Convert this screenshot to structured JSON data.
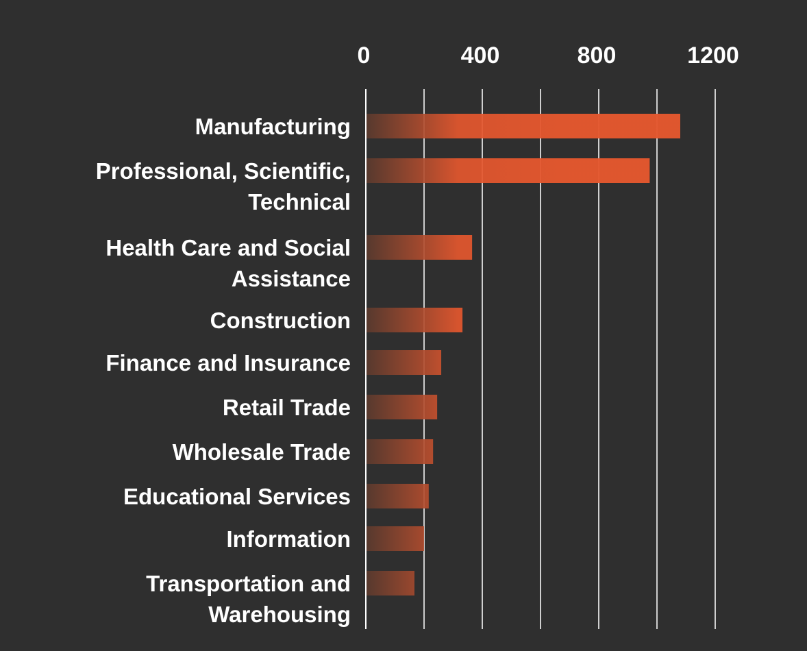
{
  "chart_data": {
    "type": "bar",
    "orientation": "horizontal",
    "categories": [
      [
        "Manufacturing"
      ],
      [
        "Professional, Scientific,",
        "Technical"
      ],
      [
        "Health Care and Social",
        "Assistance"
      ],
      [
        "Construction"
      ],
      [
        "Finance and Insurance"
      ],
      [
        "Retail Trade"
      ],
      [
        "Wholesale Trade"
      ],
      [
        "Educational Services"
      ],
      [
        "Information"
      ],
      [
        "Transportation and",
        "Warehousing"
      ]
    ],
    "values": [
      1080,
      975,
      365,
      332,
      259,
      245,
      231,
      216,
      200,
      167
    ],
    "xlim": [
      0,
      1200
    ],
    "x_ticks": [
      "0",
      "400",
      "800",
      "1200"
    ],
    "x_tick_values": [
      0,
      400,
      800,
      1200
    ],
    "gridlines_every": 200,
    "x_axis_position": "top",
    "grid": true,
    "bar_color": "#e4572e",
    "bar_gradient_start": "#5a3a2e",
    "background": "#2f2f2f"
  }
}
